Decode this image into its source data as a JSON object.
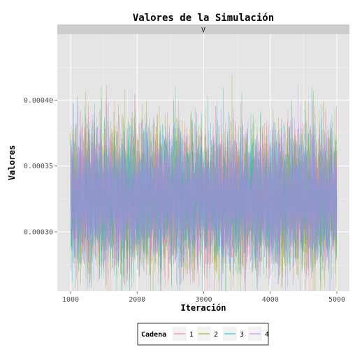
{
  "chart_data": {
    "type": "line",
    "title": "Valores de la Simulación",
    "facet_label": "V",
    "xlabel": "Iteración",
    "ylabel": "Valores",
    "x_range": [
      1000,
      5000
    ],
    "ylim": [
      0.000255,
      0.00045
    ],
    "x_ticks": [
      1000,
      2000,
      3000,
      4000,
      5000
    ],
    "x_tick_labels": [
      "1000",
      "2000",
      "3000",
      "4000",
      "5000"
    ],
    "y_ticks": [
      0.0003,
      0.00035,
      0.0004
    ],
    "y_tick_labels": [
      "0.00030",
      "0.00035",
      "0.00040"
    ],
    "mean": 0.000325,
    "sd": 2.5e-05,
    "grid": true,
    "legend_position": "bottom",
    "legend": {
      "title": "Cadena",
      "series": [
        {
          "name": "1",
          "color": "#F8766D"
        },
        {
          "name": "2",
          "color": "#7CAE00"
        },
        {
          "name": "3",
          "color": "#00BFC4"
        },
        {
          "name": "4",
          "color": "#C77CFF"
        }
      ]
    }
  }
}
